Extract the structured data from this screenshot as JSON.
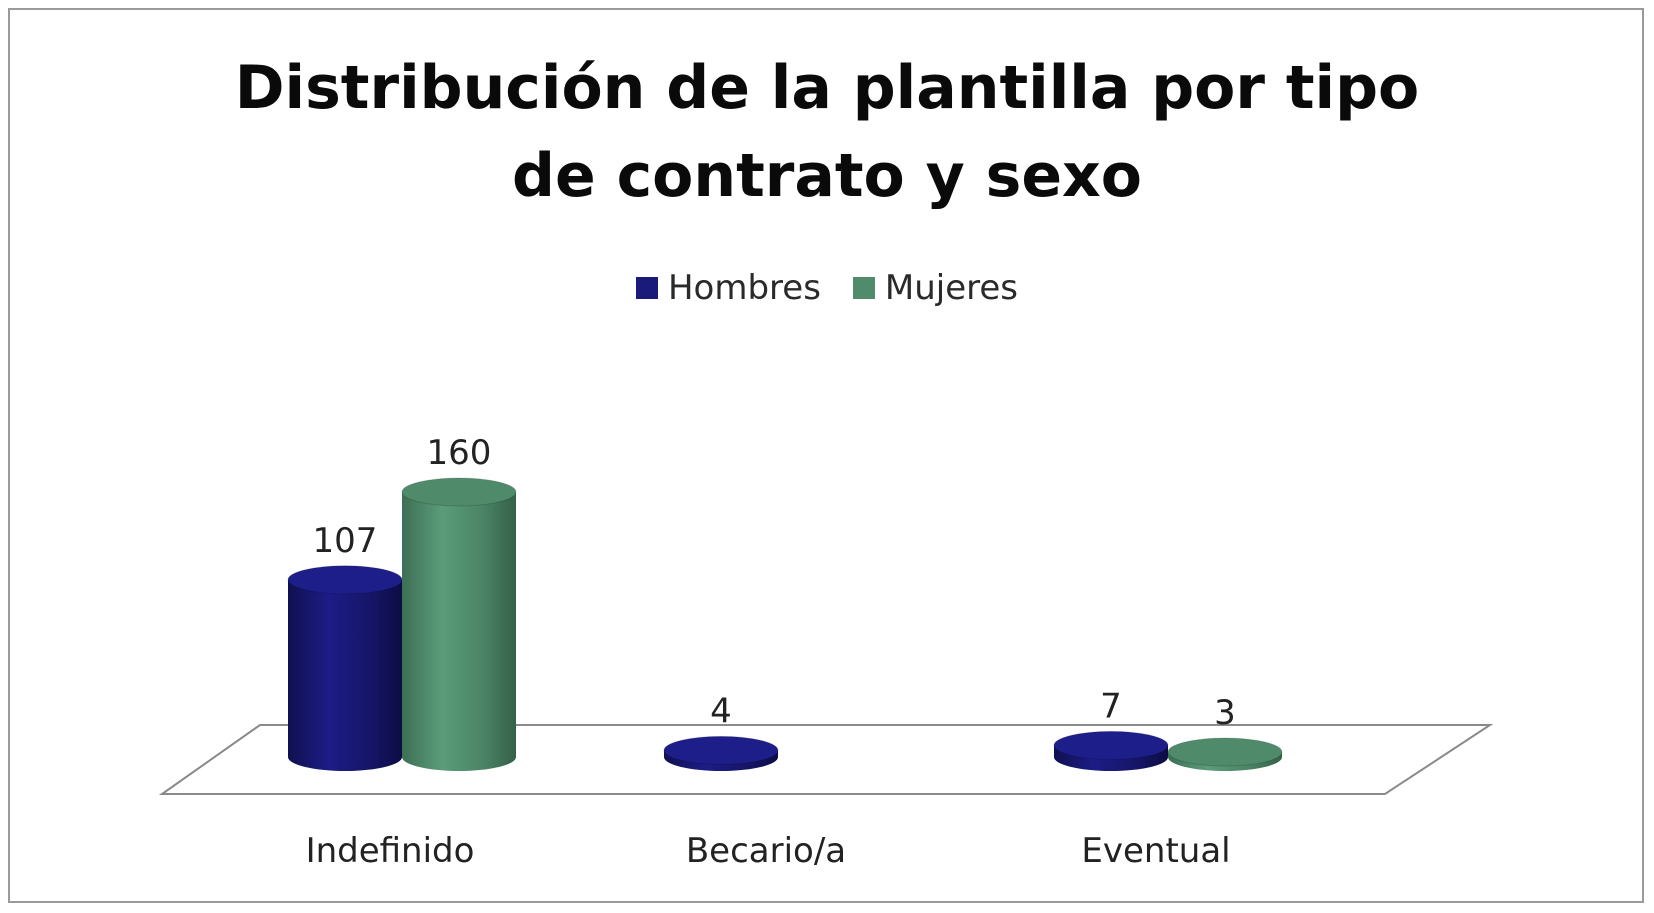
{
  "chart_data": {
    "type": "bar",
    "title_lines": [
      "Distribución de la plantilla por tipo",
      "de contrato y sexo"
    ],
    "categories": [
      "Indefinido",
      "Becario/a",
      "Eventual"
    ],
    "series": [
      {
        "name": "Hombres",
        "values": [
          107,
          4,
          7
        ],
        "color": "#1a1a7a"
      },
      {
        "name": "Mujeres",
        "values": [
          160,
          0,
          3
        ],
        "color": "#4f8c6c"
      }
    ],
    "legend_position": "top",
    "grid": false,
    "ylim": [
      0,
      160
    ],
    "style": "3d-cylinder"
  }
}
